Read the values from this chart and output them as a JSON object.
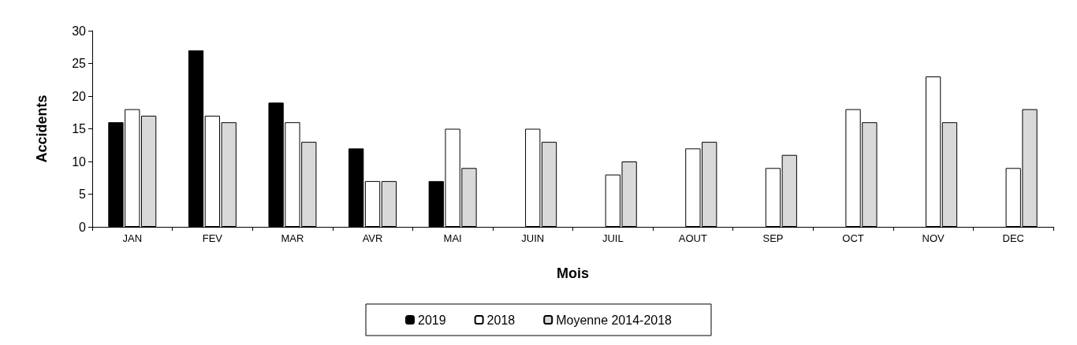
{
  "chart_data": {
    "type": "bar",
    "xlabel": "Mois",
    "ylabel": "Accidents",
    "categories": [
      "JAN",
      "FEV",
      "MAR",
      "AVR",
      "MAI",
      "JUIN",
      "JUIL",
      "AOUT",
      "SEP",
      "OCT",
      "NOV",
      "DEC"
    ],
    "series": [
      {
        "name": "2019",
        "color": "#000000",
        "values": [
          16,
          27,
          19,
          12,
          7,
          null,
          null,
          null,
          null,
          null,
          null,
          null
        ]
      },
      {
        "name": "2018",
        "color": "#ffffff",
        "values": [
          18,
          17,
          16,
          7,
          15,
          15,
          8,
          12,
          9,
          18,
          23,
          9
        ]
      },
      {
        "name": "Moyenne 2014-2018",
        "color": "#d9d9d9",
        "values": [
          17,
          16,
          13,
          7,
          9,
          13,
          10,
          13,
          11,
          16,
          16,
          18
        ]
      }
    ],
    "ylim": [
      0,
      30
    ],
    "yticks": [
      0,
      5,
      10,
      15,
      20,
      25,
      30
    ],
    "grid": false,
    "legend": "bottom"
  }
}
